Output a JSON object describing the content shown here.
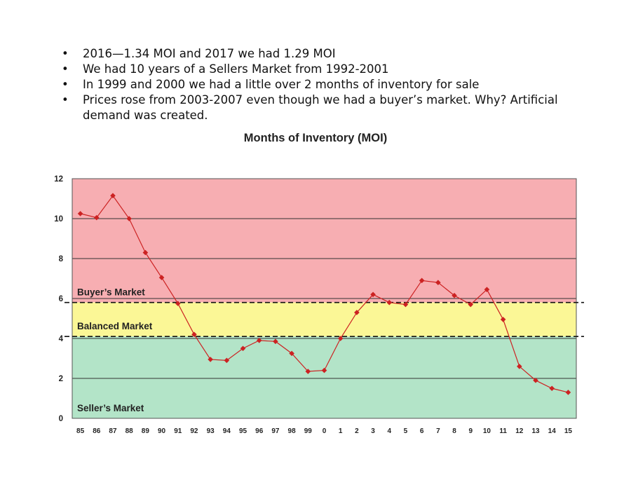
{
  "bullets": [
    "2016—1.34 MOI and 2017 we had 1.29 MOI",
    "We had 10 years of a Sellers Market from 1992-2001",
    "In 1999 and 2000 we had a little over 2 months of inventory for sale",
    "Prices rose from 2003-2007 even though we had a buyer’s market.  Why? Artificial demand was created."
  ],
  "bullet_symbol": "•",
  "chart_data": {
    "type": "line",
    "title": "Months of Inventory (MOI)",
    "xlabel": "",
    "ylabel": "",
    "categories": [
      "85",
      "86",
      "87",
      "88",
      "89",
      "90",
      "91",
      "92",
      "93",
      "94",
      "95",
      "96",
      "97",
      "98",
      "99",
      "0",
      "1",
      "2",
      "3",
      "4",
      "5",
      "6",
      "7",
      "8",
      "9",
      "10",
      "11",
      "12",
      "13",
      "14",
      "15"
    ],
    "series": [
      {
        "values": [
          10.25,
          10.05,
          11.15,
          10.0,
          8.3,
          7.05,
          5.75,
          4.2,
          2.95,
          2.9,
          3.5,
          3.9,
          3.85,
          3.25,
          2.35,
          2.4,
          4.0,
          5.3,
          6.2,
          5.8,
          5.7,
          6.9,
          6.8,
          6.15,
          5.7,
          6.45,
          4.95,
          2.6,
          1.9,
          1.5,
          1.3
        ],
        "color": "#cc2222"
      }
    ],
    "ylim": [
      0,
      12
    ],
    "yticks": [
      0,
      2,
      4,
      6,
      8,
      10,
      12
    ],
    "grid": true,
    "bands": [
      {
        "label": "Buyer’s Market",
        "from": 5.8,
        "to": 12,
        "color": "#f7aeb2"
      },
      {
        "label": "Balanced Market",
        "from": 4.1,
        "to": 5.8,
        "color": "#fbf796"
      },
      {
        "label": "Seller’s Market",
        "from": 0,
        "to": 4.1,
        "color": "#b3e4c8"
      }
    ],
    "thresholds": [
      5.8,
      4.1
    ]
  }
}
